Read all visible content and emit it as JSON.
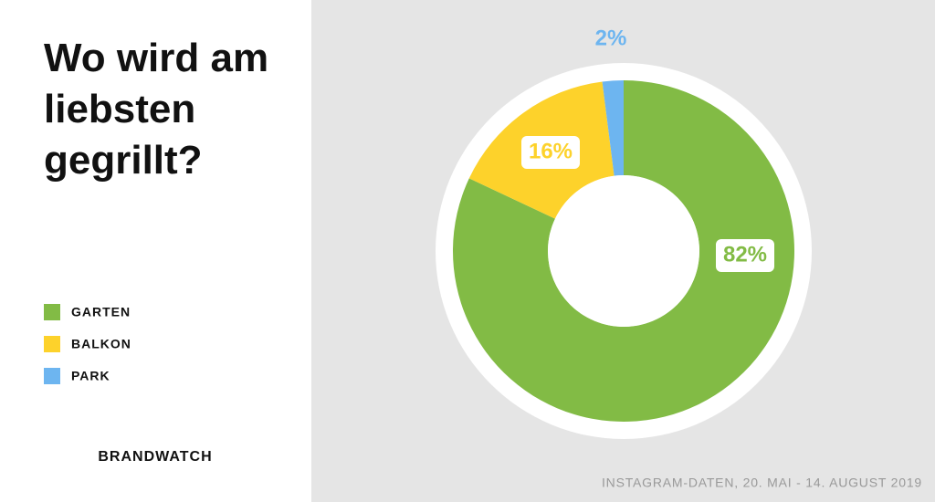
{
  "chart_data": {
    "type": "donut",
    "title": "Wo wird am liebsten gegrillt?",
    "categories": [
      "GARTEN",
      "BALKON",
      "PARK"
    ],
    "values": [
      82,
      16,
      2
    ],
    "value_labels": [
      "82%",
      "16%",
      "2%"
    ],
    "colors": [
      "#82bb45",
      "#fdd22b",
      "#6db5f0"
    ],
    "brand": "BRANDWATCH",
    "source": "INSTAGRAM-DATEN, 20. MAI - 14. AUGUST 2019"
  }
}
